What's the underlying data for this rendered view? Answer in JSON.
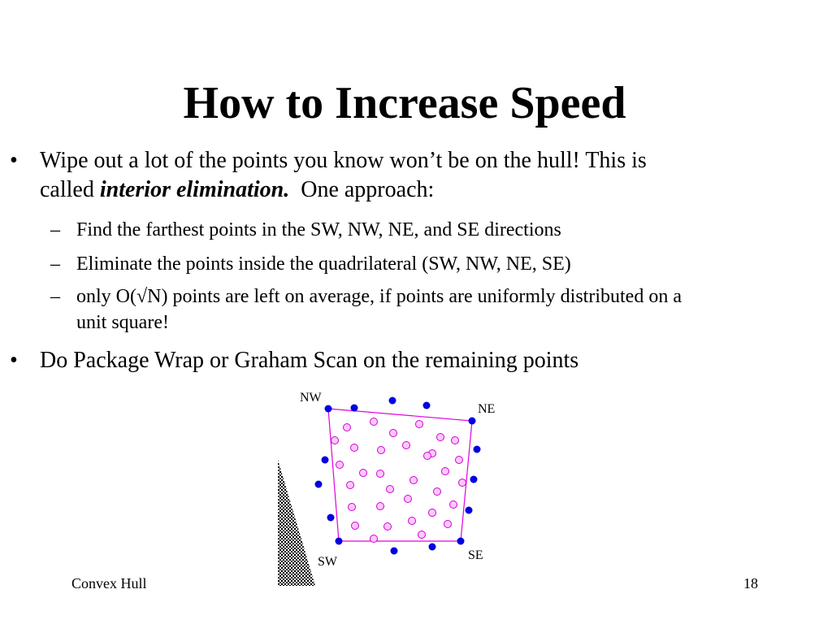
{
  "title": "How to Increase Speed",
  "bullets": [
    {
      "bullet_glyph": "•",
      "line1": "Wipe out a lot of the points you know won’t be on the hull!  This is",
      "line2_pre": "called ",
      "line2_em": "interior elimination.",
      "line2_post": "  One approach:"
    },
    {
      "bullet_glyph": "•",
      "text": "Do Package Wrap or Graham Scan on the remaining points"
    }
  ],
  "sub_bullets": [
    {
      "dash": "–",
      "text": "Find the farthest points in the SW, NW, NE, and SE directions"
    },
    {
      "dash": "–",
      "text": "Eliminate the points inside the quadrilateral (SW, NW, NE, SE)"
    },
    {
      "dash": "–",
      "line1": "only O(√N) points are left on average, if points are uniformly distributed on a",
      "line2": "unit square!"
    }
  ],
  "figure": {
    "labels": {
      "nw": "NW",
      "ne": "NE",
      "sw": "SW",
      "se": "SE"
    },
    "colors": {
      "hull_point": "#0000e0",
      "interior_point_fill": "#ffc8ff",
      "interior_point_stroke": "#d000d0",
      "quad_stroke": "#e000e0"
    }
  },
  "footer": {
    "left": "Convex Hull",
    "page": "18"
  }
}
